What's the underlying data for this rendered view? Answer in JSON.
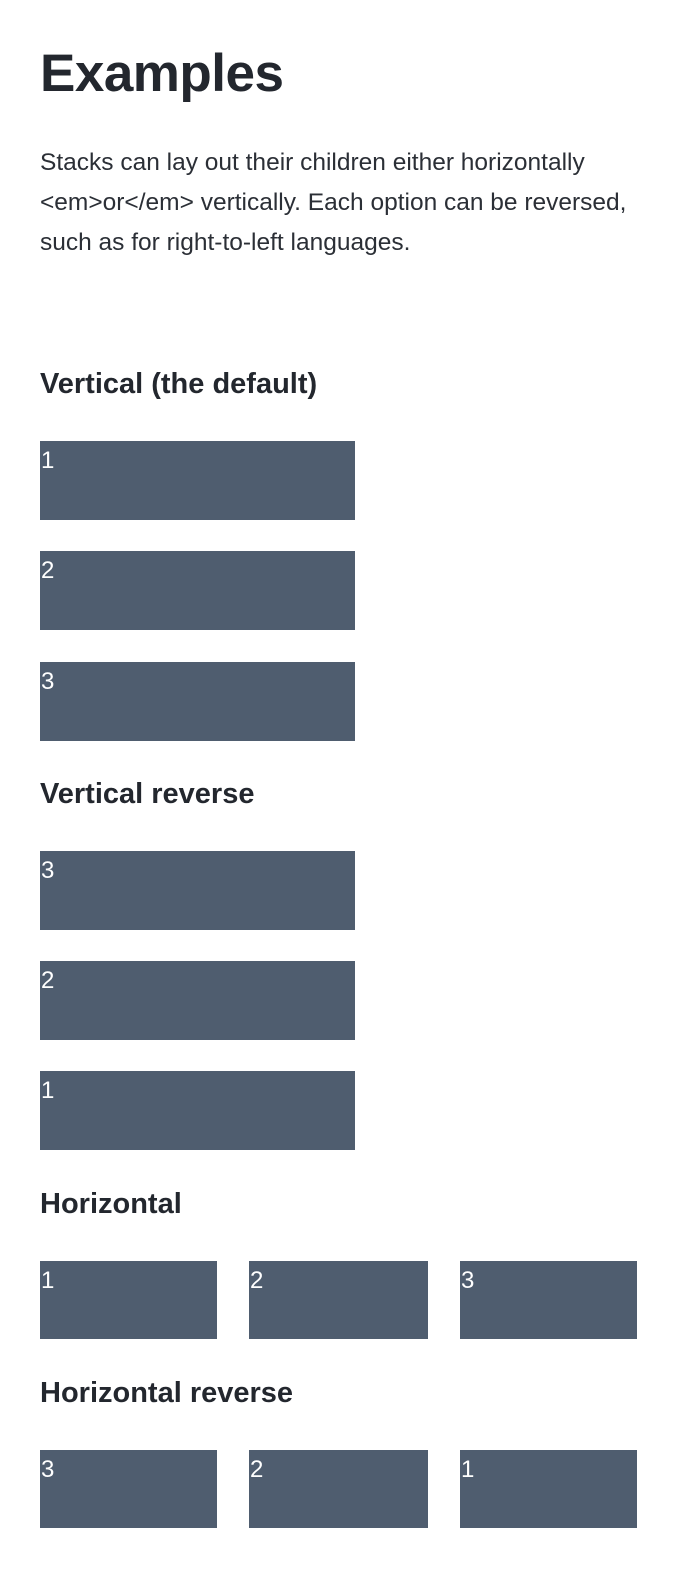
{
  "page": {
    "title": "Examples",
    "intro": "Stacks can lay out their children either horizontally <em>or</em> vertically. Each option can be reversed, such as for right-to-left languages."
  },
  "sections": {
    "vertical": {
      "title": "Vertical (the default)",
      "items": [
        "1",
        "2",
        "3"
      ]
    },
    "vertical_reverse": {
      "title": "Vertical reverse",
      "items": [
        "3",
        "2",
        "1"
      ]
    },
    "horizontal": {
      "title": "Horizontal",
      "items": [
        "1",
        "2",
        "3"
      ]
    },
    "horizontal_reverse": {
      "title": "Horizontal reverse",
      "items": [
        "3",
        "2",
        "1"
      ]
    }
  },
  "colors": {
    "box_background": "#4f5d6f",
    "box_text": "#ffffff",
    "heading_text": "#23272e"
  }
}
